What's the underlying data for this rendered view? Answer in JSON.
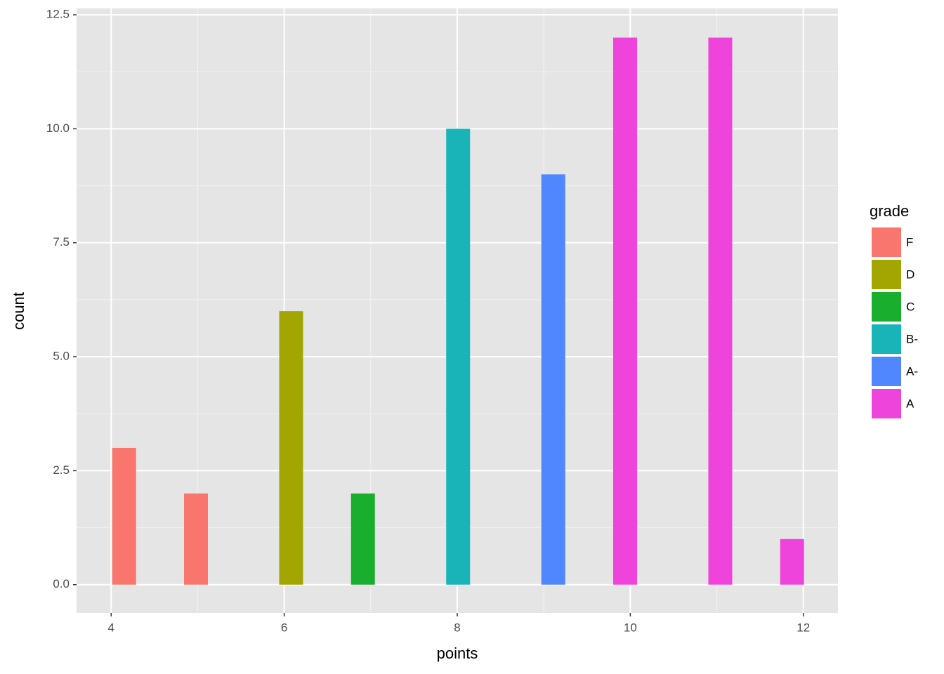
{
  "chart_data": {
    "type": "bar",
    "x_label": "points",
    "y_label": "count",
    "legend_title": "grade",
    "series": [
      {
        "name": "F",
        "color": "#f8766d",
        "x": [
          4.15,
          4.98
        ],
        "values": [
          3,
          2
        ]
      },
      {
        "name": "D",
        "color": "#a3a500",
        "x": [
          6.08
        ],
        "values": [
          6
        ]
      },
      {
        "name": "C",
        "color": "#1aae2e",
        "x": [
          6.91
        ],
        "values": [
          2
        ]
      },
      {
        "name": "B-",
        "color": "#18b4b8",
        "x": [
          8.01
        ],
        "values": [
          10
        ]
      },
      {
        "name": "A-",
        "color": "#5087fe",
        "x": [
          9.11
        ],
        "values": [
          9
        ]
      },
      {
        "name": "A",
        "color": "#ef44db",
        "x": [
          9.94,
          11.04,
          11.87
        ],
        "values": [
          12,
          12,
          1
        ]
      }
    ],
    "xlim": [
      3.6,
      12.4
    ],
    "xticks": [
      4,
      6,
      8,
      10,
      12
    ],
    "ylim": [
      -0.62,
      12.64
    ],
    "yticks": [
      {
        "value": 0,
        "label": "0.0"
      },
      {
        "value": 2.5,
        "label": "2.5"
      },
      {
        "value": 5,
        "label": "5.0"
      },
      {
        "value": 7.5,
        "label": "7.5"
      },
      {
        "value": 10,
        "label": "10.0"
      },
      {
        "value": 12.5,
        "label": "12.5"
      }
    ],
    "grid": true,
    "legend_position": "right"
  }
}
